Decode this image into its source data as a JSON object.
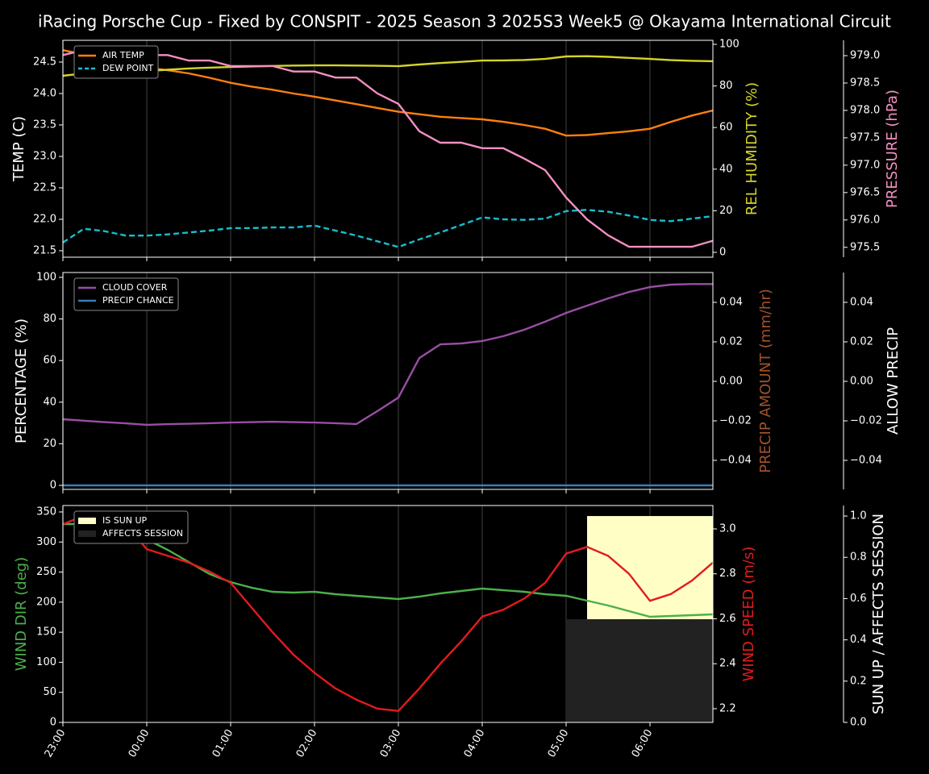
{
  "title": "iRacing Porsche Cup - Fixed by CONSPIT - 2025 Season 3 2025S3 Week5 @ Okayama International Circuit",
  "chart_data": [
    {
      "type": "line",
      "grid": true,
      "legend": "upper left",
      "ylabel": "TEMP (C)",
      "ylabel_color": "#ffffff",
      "y2label": "REL HUMIDITY (%)",
      "y2label_color": "#d4d42a",
      "y3label": "PRESSURE (hPa)",
      "y3label_color": "#f48fc1",
      "ylim": [
        21.397,
        24.846
      ],
      "yticks": [
        21.5,
        {
          "value": 22,
          "label": "22.0"
        },
        22.5,
        {
          "value": 23,
          "label": "23.0"
        },
        23.5,
        {
          "value": 24,
          "label": "24.0"
        },
        24.5
      ],
      "y2lim": [
        -2.33,
        101.94
      ],
      "y2ticks": [
        0,
        20,
        40,
        60,
        80,
        100
      ],
      "y3lim": [
        975.32,
        979.28
      ],
      "y3ticks": [
        975.5,
        {
          "value": 976,
          "label": "976.0"
        },
        976.5,
        {
          "value": 977,
          "label": "977.0"
        },
        977.5,
        {
          "value": 978,
          "label": "978.0"
        },
        978.5,
        {
          "value": 979,
          "label": "979.0"
        }
      ],
      "series": [
        {
          "name": "AIR TEMP",
          "color": "#ff7f0e",
          "values": [
            24.69,
            24.62,
            24.55,
            24.48,
            24.41,
            24.37,
            24.32,
            24.25,
            24.17,
            24.11,
            24.06,
            24.0,
            23.95,
            23.89,
            23.83,
            23.77,
            23.71,
            23.67,
            23.63,
            23.61,
            23.59,
            23.55,
            23.5,
            23.44,
            23.33,
            23.34,
            23.37,
            23.4,
            23.44,
            23.55,
            23.65,
            23.73
          ]
        },
        {
          "name": "DEW POINT",
          "color": "#17becf",
          "dashed": true,
          "values": [
            21.63,
            21.85,
            21.81,
            21.74,
            21.74,
            21.76,
            21.79,
            21.82,
            21.86,
            21.86,
            21.87,
            21.87,
            21.9,
            21.82,
            21.74,
            21.65,
            21.56,
            21.68,
            21.79,
            21.91,
            22.03,
            22.0,
            21.99,
            22.01,
            22.13,
            22.15,
            22.12,
            22.06,
            21.99,
            21.97,
            22.01,
            22.05
          ]
        },
        {
          "color": "#d4d42a",
          "axis": "y2",
          "values": [
            84.9,
            86.0,
            86.1,
            86.4,
            87.2,
            87.8,
            88.4,
            88.8,
            89.1,
            89.4,
            89.6,
            89.8,
            89.9,
            89.9,
            89.8,
            89.7,
            89.5,
            90.3,
            91.0,
            91.6,
            92.2,
            92.3,
            92.5,
            93.0,
            94.2,
            94.3,
            94.0,
            93.5,
            93.0,
            92.4,
            92.1,
            91.9
          ]
        },
        {
          "color": "#f48fc1",
          "axis": "y3",
          "values": [
            979.01,
            979.1,
            979.1,
            979.1,
            979.01,
            979.01,
            978.91,
            978.91,
            978.81,
            978.81,
            978.81,
            978.71,
            978.71,
            978.6,
            978.6,
            978.31,
            978.12,
            977.62,
            977.41,
            977.41,
            977.31,
            977.31,
            977.12,
            976.91,
            976.41,
            976.01,
            975.72,
            975.51,
            975.51,
            975.51,
            975.51,
            975.62
          ]
        }
      ]
    },
    {
      "type": "line",
      "grid": true,
      "legend": "upper left",
      "ylabel": "PERCENTAGE (%)",
      "ylabel_color": "#ffffff",
      "y2label": "PRECIP AMOUNT (mm/hr)",
      "y2label_color": "#a0522d",
      "y3label": "ALLOW PRECIP",
      "y3label_color": "#ffffff",
      "ylim": [
        -1.94,
        102.33
      ],
      "yticks": [
        0,
        20,
        40,
        60,
        80,
        100
      ],
      "y2lim": [
        -0.0547,
        0.0551
      ],
      "y2ticks": [
        {
          "value": -0.04,
          "label": "−0.04"
        },
        {
          "value": -0.02,
          "label": "−0.02"
        },
        {
          "value": 0,
          "label": "0.00"
        },
        0.02,
        0.04
      ],
      "y3lim": [
        -0.0547,
        0.0551
      ],
      "y3ticks": [
        {
          "value": -0.04,
          "label": "−0.04"
        },
        {
          "value": -0.02,
          "label": "−0.02"
        },
        {
          "value": 0,
          "label": "0.00"
        },
        0.02,
        0.04
      ],
      "series": [
        {
          "name": "CLOUD COVER",
          "color": "#984ea3",
          "values": [
            31.8,
            31.1,
            30.4,
            29.8,
            29.1,
            29.4,
            29.6,
            29.9,
            30.2,
            30.4,
            30.6,
            30.4,
            30.2,
            29.9,
            29.5,
            35.7,
            42.2,
            61.2,
            67.8,
            68.2,
            69.4,
            71.7,
            74.8,
            78.7,
            82.9,
            86.4,
            89.9,
            93.0,
            95.3,
            96.5,
            96.8,
            96.8
          ]
        },
        {
          "name": "PRECIP CHANCE",
          "color": "#377eb8",
          "values": [
            0,
            0,
            0,
            0,
            0,
            0,
            0,
            0,
            0,
            0,
            0,
            0,
            0,
            0,
            0,
            0,
            0,
            0,
            0,
            0,
            0,
            0,
            0,
            0,
            0,
            0,
            0,
            0,
            0,
            0,
            0,
            0
          ]
        }
      ]
    },
    {
      "type": "line",
      "grid": true,
      "legend": "upper left",
      "categories": [
        "23:00",
        null,
        null,
        null,
        "00:00",
        null,
        null,
        null,
        "01:00",
        null,
        null,
        null,
        "02:00",
        null,
        null,
        null,
        "03:00",
        null,
        null,
        null,
        "04:00",
        null,
        null,
        null,
        "05:00",
        null,
        null,
        null,
        "06:00",
        null,
        null,
        null
      ],
      "ylabel": "WIND DIR (deg)",
      "ylabel_color": "#4daf4a",
      "y2label": "WIND SPEED (m/s)",
      "y2label_color": "#e41a1c",
      "y3label": "SUN UP / AFFECTS SESSION",
      "y3label_color": "#ffffff",
      "ylim": [
        0,
        360.7
      ],
      "yticks": [
        0,
        50,
        100,
        150,
        200,
        250,
        300,
        350
      ],
      "y2lim": [
        2.139,
        3.104
      ],
      "y2ticks": [
        2.2,
        2.4,
        2.6,
        2.8,
        {
          "value": 3,
          "label": "3.0"
        }
      ],
      "y3lim": [
        0,
        1.051
      ],
      "y3ticks": [
        {
          "value": 0,
          "label": "0.0"
        },
        0.2,
        0.4,
        0.6,
        0.8,
        {
          "value": 1,
          "label": "1.0"
        }
      ],
      "series": [
        {
          "name": "IS SUN UP",
          "color": "#ffffc5",
          "style": "area",
          "axis": "y3",
          "values": [
            0,
            0,
            0,
            0,
            0,
            0,
            0,
            0,
            0,
            0,
            0,
            0,
            0,
            0,
            0,
            0,
            0,
            0,
            0,
            0,
            0,
            0,
            0,
            0,
            0,
            1,
            1,
            1,
            1,
            1,
            1,
            1
          ]
        },
        {
          "name": "AFFECTS SESSION",
          "color": "#222222",
          "style": "area",
          "axis": "y3",
          "values": [
            0,
            0,
            0,
            0,
            0,
            0,
            0,
            0,
            0,
            0,
            0,
            0,
            0,
            0,
            0,
            0,
            0,
            0,
            0,
            0,
            0,
            0,
            0,
            0,
            0.5,
            0.5,
            0.5,
            0.5,
            0.5,
            0.5,
            0.5,
            0.5
          ]
        },
        {
          "color": "#4daf4a",
          "values": [
            329.9,
            329.9,
            324.5,
            316.5,
            304.4,
            287.0,
            266.9,
            246.7,
            233.3,
            224.0,
            217.2,
            215.9,
            217.2,
            213.2,
            210.5,
            207.9,
            205.2,
            209.2,
            214.6,
            218.6,
            222.6,
            219.9,
            217.2,
            213.2,
            210.5,
            202.5,
            194.4,
            185.1,
            175.7,
            177.0,
            178.4,
            179.7
          ]
        },
        {
          "color": "#e41a1c",
          "axis": "y2",
          "values": [
            3.02,
            3.06,
            3.05,
            3.02,
            2.91,
            2.88,
            2.85,
            2.81,
            2.76,
            2.65,
            2.54,
            2.44,
            2.36,
            2.29,
            2.24,
            2.2,
            2.19,
            2.29,
            2.4,
            2.5,
            2.61,
            2.64,
            2.69,
            2.76,
            2.89,
            2.92,
            2.88,
            2.8,
            2.68,
            2.71,
            2.77,
            2.85
          ]
        }
      ]
    }
  ]
}
